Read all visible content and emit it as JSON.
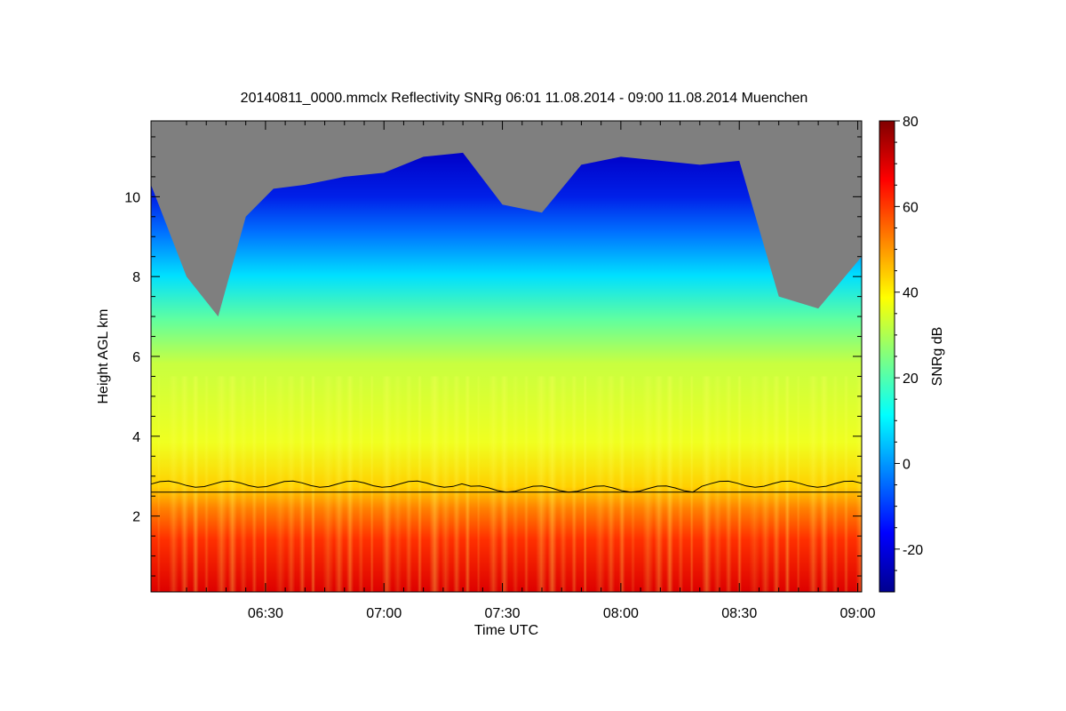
{
  "chart_data": {
    "type": "heatmap",
    "title": "20140811_0000.mmclx Reflectivity SNRg   06:01 11.08.2014 - 09:00 11.08.2014 Muenchen",
    "xlabel": "Time UTC",
    "ylabel": "Height AGL km",
    "colorbar_label": "SNRg dB",
    "x_range_minutes_utc": [
      361,
      541
    ],
    "y_range_km": [
      0.1,
      11.9
    ],
    "x_ticks": [
      {
        "label": "06:30",
        "minutes": 390
      },
      {
        "label": "07:00",
        "minutes": 420
      },
      {
        "label": "07:30",
        "minutes": 450
      },
      {
        "label": "08:00",
        "minutes": 480
      },
      {
        "label": "08:30",
        "minutes": 510
      },
      {
        "label": "09:00",
        "minutes": 540
      }
    ],
    "y_ticks": [
      2,
      4,
      6,
      8,
      10
    ],
    "colorbar_ticks": [
      -20,
      0,
      20,
      40,
      60,
      80
    ],
    "colorbar_range": [
      -30,
      80
    ],
    "no_data_color": "#7f7f7f",
    "colormap": [
      "#00008f",
      "#0000ff",
      "#0080ff",
      "#00ffff",
      "#80ff80",
      "#ffff00",
      "#ff8000",
      "#ff0000",
      "#800000"
    ],
    "horizontal_line_km": 2.6,
    "echo_top_km": [
      {
        "t": 361,
        "top": 10.3
      },
      {
        "t": 370,
        "top": 8.0
      },
      {
        "t": 378,
        "top": 7.0
      },
      {
        "t": 385,
        "top": 9.5
      },
      {
        "t": 392,
        "top": 10.2
      },
      {
        "t": 400,
        "top": 10.3
      },
      {
        "t": 410,
        "top": 10.5
      },
      {
        "t": 420,
        "top": 10.6
      },
      {
        "t": 430,
        "top": 11.0
      },
      {
        "t": 440,
        "top": 11.1
      },
      {
        "t": 450,
        "top": 9.8
      },
      {
        "t": 460,
        "top": 9.6
      },
      {
        "t": 470,
        "top": 10.8
      },
      {
        "t": 480,
        "top": 11.0
      },
      {
        "t": 490,
        "top": 10.9
      },
      {
        "t": 500,
        "top": 10.8
      },
      {
        "t": 510,
        "top": 10.9
      },
      {
        "t": 520,
        "top": 7.5
      },
      {
        "t": 530,
        "top": 7.2
      },
      {
        "t": 541,
        "top": 8.5
      }
    ]
  }
}
